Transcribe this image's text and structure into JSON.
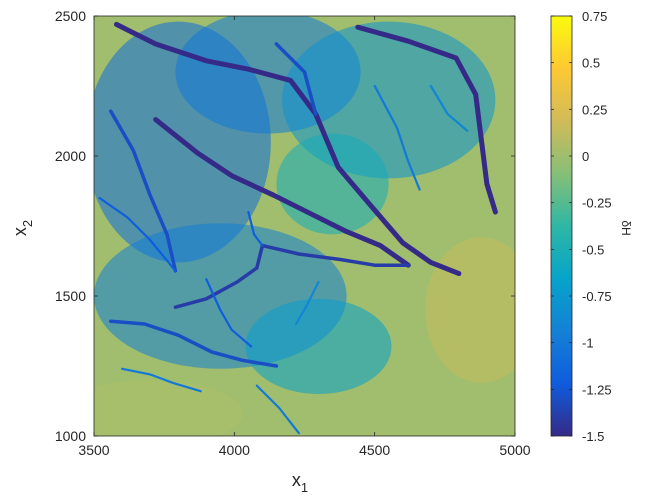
{
  "chart_data": {
    "type": "heatmap",
    "title": "",
    "xlabel": {
      "base": "x",
      "sub": "1"
    },
    "ylabel": {
      "base": "x",
      "sub": "2"
    },
    "xlim": [
      3500,
      5000
    ],
    "ylim": [
      1000,
      2500
    ],
    "xticks": [
      3500,
      4000,
      4500,
      5000
    ],
    "yticks": [
      1000,
      1500,
      2000,
      2500
    ],
    "xtick_labels": [
      "3500",
      "4000",
      "4500",
      "5000"
    ],
    "ytick_labels": [
      "1000",
      "1500",
      "2000",
      "2500"
    ],
    "colorbar": {
      "label": "δH",
      "range": [
        -1.5,
        0.75
      ],
      "ticks": [
        -1.5,
        -1.25,
        -1,
        -0.75,
        -0.5,
        -0.25,
        0,
        0.25,
        0.5,
        0.75
      ],
      "tick_labels": [
        "-1.5",
        "-1.25",
        "-1",
        "-0.75",
        "-0.5",
        "-0.25",
        "0",
        "0.25",
        "0.5",
        "0.75"
      ],
      "colormap": "parula",
      "colors": [
        "#352a87",
        "#0f5cdd",
        "#1481d6",
        "#06a4ca",
        "#2eb7a4",
        "#87bf77",
        "#d1bb59",
        "#fec832",
        "#f9fb0e"
      ]
    },
    "background_level": 0.0,
    "channels": [
      {
        "level": -1.5,
        "points": [
          [
            3580,
            2470
          ],
          [
            3720,
            2400
          ],
          [
            3900,
            2340
          ],
          [
            4050,
            2310
          ],
          [
            4200,
            2270
          ],
          [
            4290,
            2150
          ],
          [
            4370,
            1960
          ],
          [
            4480,
            1830
          ],
          [
            4600,
            1690
          ],
          [
            4700,
            1620
          ],
          [
            4800,
            1580
          ]
        ]
      },
      {
        "level": -1.5,
        "points": [
          [
            3720,
            2130
          ],
          [
            3870,
            2010
          ],
          [
            3990,
            1930
          ],
          [
            4140,
            1860
          ],
          [
            4280,
            1790
          ],
          [
            4400,
            1730
          ],
          [
            4520,
            1680
          ],
          [
            4620,
            1610
          ]
        ]
      },
      {
        "level": -1.5,
        "points": [
          [
            4440,
            2460
          ],
          [
            4620,
            2410
          ],
          [
            4790,
            2350
          ],
          [
            4860,
            2220
          ],
          [
            4880,
            2060
          ],
          [
            4900,
            1900
          ],
          [
            4930,
            1800
          ]
        ]
      },
      {
        "level": -1.4,
        "points": [
          [
            4100,
            1680
          ],
          [
            4230,
            1650
          ],
          [
            4380,
            1630
          ],
          [
            4500,
            1610
          ],
          [
            4620,
            1610
          ]
        ]
      },
      {
        "level": -1.4,
        "points": [
          [
            4100,
            1680
          ],
          [
            4080,
            1600
          ],
          [
            4010,
            1550
          ],
          [
            3900,
            1490
          ],
          [
            3790,
            1460
          ]
        ]
      },
      {
        "level": -1.3,
        "points": [
          [
            3560,
            2160
          ],
          [
            3640,
            2020
          ],
          [
            3700,
            1860
          ],
          [
            3760,
            1720
          ],
          [
            3790,
            1590
          ]
        ]
      },
      {
        "level": -1.3,
        "points": [
          [
            4150,
            2400
          ],
          [
            4250,
            2300
          ],
          [
            4290,
            2150
          ]
        ]
      },
      {
        "level": -1.3,
        "points": [
          [
            3560,
            1410
          ],
          [
            3680,
            1400
          ],
          [
            3800,
            1360
          ],
          [
            3920,
            1300
          ],
          [
            4030,
            1270
          ],
          [
            4150,
            1250
          ]
        ]
      },
      {
        "level": -1.2,
        "points": [
          [
            3520,
            1850
          ],
          [
            3620,
            1780
          ],
          [
            3700,
            1700
          ],
          [
            3790,
            1590
          ]
        ]
      },
      {
        "level": -1.2,
        "points": [
          [
            4050,
            1800
          ],
          [
            4070,
            1720
          ],
          [
            4100,
            1680
          ]
        ]
      },
      {
        "level": -1.2,
        "points": [
          [
            3900,
            1560
          ],
          [
            3950,
            1450
          ],
          [
            3990,
            1380
          ],
          [
            4060,
            1320
          ]
        ]
      },
      {
        "level": -1.0,
        "points": [
          [
            3600,
            1240
          ],
          [
            3700,
            1220
          ],
          [
            3780,
            1190
          ],
          [
            3880,
            1160
          ]
        ]
      },
      {
        "level": -1.0,
        "points": [
          [
            4500,
            2250
          ],
          [
            4580,
            2100
          ],
          [
            4620,
            1980
          ],
          [
            4660,
            1880
          ]
        ]
      },
      {
        "level": -1.0,
        "points": [
          [
            4080,
            1180
          ],
          [
            4160,
            1100
          ],
          [
            4230,
            1010
          ]
        ]
      },
      {
        "level": -0.9,
        "points": [
          [
            4700,
            2250
          ],
          [
            4760,
            2150
          ],
          [
            4830,
            2090
          ]
        ]
      },
      {
        "level": -0.9,
        "points": [
          [
            4300,
            1550
          ],
          [
            4260,
            1470
          ],
          [
            4220,
            1400
          ]
        ]
      }
    ],
    "regions": [
      {
        "level": -1.1,
        "center": [
          3800,
          2050
        ],
        "radius": [
          330,
          430
        ]
      },
      {
        "level": -1.0,
        "center": [
          4120,
          2300
        ],
        "radius": [
          330,
          220
        ]
      },
      {
        "level": -0.8,
        "center": [
          4550,
          2200
        ],
        "radius": [
          380,
          280
        ]
      },
      {
        "level": -0.95,
        "center": [
          3950,
          1500
        ],
        "radius": [
          450,
          260
        ]
      },
      {
        "level": -0.7,
        "center": [
          4300,
          1320
        ],
        "radius": [
          260,
          170
        ]
      },
      {
        "level": -0.55,
        "center": [
          4350,
          1900
        ],
        "radius": [
          200,
          180
        ]
      },
      {
        "level": 0.15,
        "center": [
          4880,
          1450
        ],
        "radius": [
          200,
          260
        ]
      },
      {
        "level": 0.05,
        "center": [
          3700,
          1080
        ],
        "radius": [
          330,
          120
        ]
      }
    ]
  }
}
